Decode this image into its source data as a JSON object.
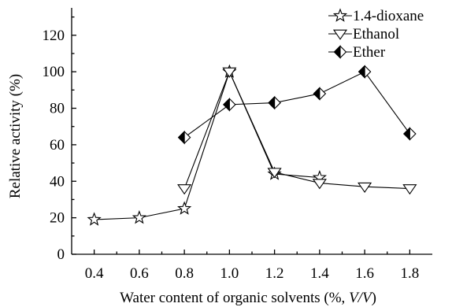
{
  "chart_data": {
    "type": "line",
    "xlabel_prefix": "Water content of organic solvents (%, ",
    "xlabel_italic": "V/V",
    "xlabel_suffix": ")",
    "ylabel": "Relative activity (%)",
    "xlim": [
      0.3,
      1.9
    ],
    "ylim": [
      0,
      135
    ],
    "x_ticks": [
      0.4,
      0.6,
      0.8,
      1.0,
      1.2,
      1.4,
      1.6,
      1.8
    ],
    "x_tick_labels": [
      "0.4",
      "0.6",
      "0.8",
      "1.0",
      "1.2",
      "1.4",
      "1.6",
      "1.8"
    ],
    "y_ticks": [
      0,
      20,
      40,
      60,
      80,
      100,
      120
    ],
    "y_tick_labels": [
      "0",
      "20",
      "40",
      "60",
      "80",
      "100",
      "120"
    ],
    "grid": false,
    "legend_position": "top-right",
    "series": [
      {
        "name": "1.4-dioxane",
        "marker": "star",
        "x": [
          0.4,
          0.6,
          0.8,
          1.0,
          1.2,
          1.4
        ],
        "y": [
          19,
          20,
          25,
          100,
          44,
          42
        ]
      },
      {
        "name": "Ethanol",
        "marker": "triangle-down",
        "x": [
          0.8,
          1.0,
          1.2,
          1.4,
          1.6,
          1.8
        ],
        "y": [
          36,
          100,
          45,
          39,
          37,
          36
        ]
      },
      {
        "name": "Ether",
        "marker": "half-diamond",
        "x": [
          0.8,
          1.0,
          1.2,
          1.4,
          1.6,
          1.8
        ],
        "y": [
          64,
          82,
          83,
          88,
          100,
          66
        ]
      }
    ]
  }
}
